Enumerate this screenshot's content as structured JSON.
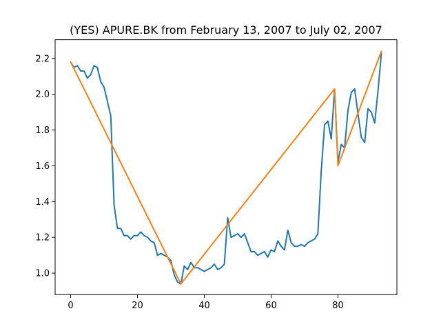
{
  "chart_data": {
    "type": "line",
    "title": "(YES) APURE.BK from February 13, 2007 to July 02, 2007",
    "xlabel": "",
    "ylabel": "",
    "xlim": [
      -4.65,
      97.65
    ],
    "ylim": [
      0.88,
      2.305
    ],
    "xticks": [
      0,
      20,
      40,
      60,
      80
    ],
    "xtick_labels": [
      "0",
      "20",
      "40",
      "60",
      "80"
    ],
    "yticks": [
      1.0,
      1.2,
      1.4,
      1.6,
      1.8,
      2.0,
      2.2
    ],
    "ytick_labels": [
      "1.0",
      "1.2",
      "1.4",
      "1.6",
      "1.8",
      "2.0",
      "2.2"
    ],
    "grid": false,
    "legend": "none",
    "series": [
      {
        "color": "#1f77b4",
        "x": [
          0,
          1,
          2,
          3,
          4,
          5,
          6,
          7,
          8,
          9,
          10,
          11,
          12,
          13,
          14,
          15,
          16,
          17,
          18,
          19,
          20,
          21,
          22,
          23,
          24,
          25,
          26,
          27,
          28,
          29,
          30,
          31,
          32,
          33,
          34,
          35,
          36,
          37,
          38,
          39,
          40,
          41,
          42,
          43,
          44,
          45,
          46,
          47,
          48,
          49,
          50,
          51,
          52,
          53,
          54,
          55,
          56,
          57,
          58,
          59,
          60,
          61,
          62,
          63,
          64,
          65,
          66,
          67,
          68,
          69,
          70,
          71,
          72,
          73,
          74,
          75,
          76,
          77,
          78,
          79,
          80,
          81,
          82,
          83,
          84,
          85,
          86,
          87,
          88,
          89,
          90,
          91,
          92,
          93
        ],
        "values": [
          2.18,
          2.15,
          2.16,
          2.13,
          2.13,
          2.09,
          2.11,
          2.16,
          2.15,
          2.07,
          2.04,
          1.96,
          1.88,
          1.38,
          1.25,
          1.25,
          1.21,
          1.21,
          1.19,
          1.21,
          1.21,
          1.23,
          1.21,
          1.2,
          1.18,
          1.17,
          1.1,
          1.11,
          1.1,
          1.09,
          1.07,
          0.99,
          0.95,
          0.94,
          1.04,
          1.02,
          1.06,
          1.03,
          1.03,
          1.02,
          1.01,
          1.02,
          1.03,
          1.05,
          1.02,
          1.03,
          1.05,
          1.31,
          1.2,
          1.21,
          1.22,
          1.2,
          1.22,
          1.17,
          1.12,
          1.12,
          1.1,
          1.11,
          1.12,
          1.09,
          1.13,
          1.12,
          1.18,
          1.15,
          1.13,
          1.24,
          1.17,
          1.15,
          1.15,
          1.16,
          1.15,
          1.17,
          1.18,
          1.19,
          1.22,
          1.57,
          1.83,
          1.85,
          1.75,
          2.03,
          1.62,
          1.72,
          1.7,
          1.91,
          2.01,
          2.03,
          1.89,
          1.76,
          1.73,
          1.92,
          1.9,
          1.84,
          2.02,
          2.23
        ]
      },
      {
        "color": "#ff7f0e",
        "x": [
          0,
          33,
          79,
          80,
          93
        ],
        "values": [
          2.18,
          0.94,
          2.03,
          1.6,
          2.24
        ]
      }
    ]
  }
}
